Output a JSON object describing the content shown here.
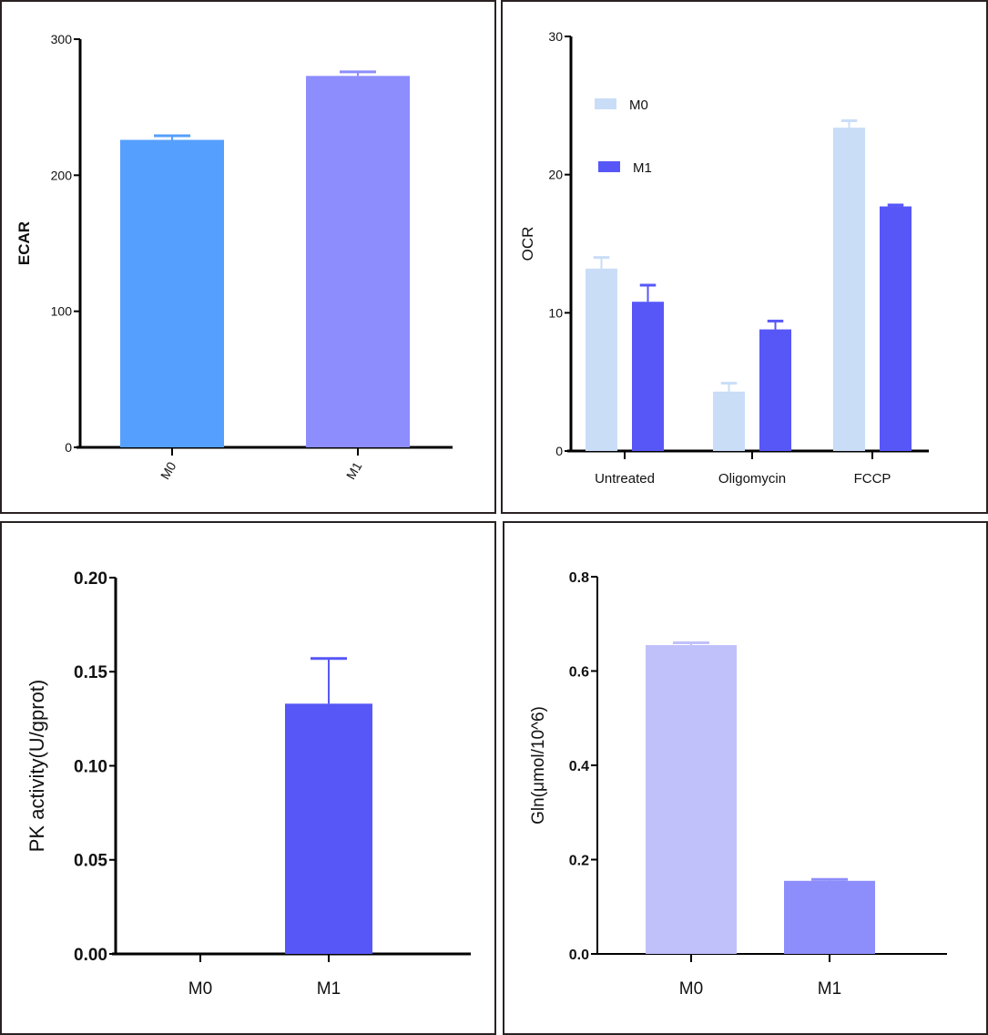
{
  "chart_data": [
    {
      "type": "bar",
      "ylabel": "ECAR",
      "ylim": [
        0,
        300
      ],
      "yticks": [
        "0",
        "100",
        "200",
        "300"
      ],
      "categories": [
        "M0",
        "M1"
      ],
      "values": [
        226,
        273
      ],
      "errors": [
        3,
        3
      ],
      "colors": [
        "#559ffe",
        "#8d8dfe"
      ],
      "xtick_rotation": "rotated",
      "grid": false
    },
    {
      "type": "bar",
      "ylabel": "OCR",
      "ylim": [
        0,
        30
      ],
      "yticks": [
        "0",
        "10",
        "20",
        "30"
      ],
      "categories": [
        "Untreated",
        "Oligomycin",
        "FCCP"
      ],
      "series": [
        {
          "name": "M0",
          "values": [
            13.2,
            4.3,
            23.4
          ],
          "errors": [
            0.8,
            0.6,
            0.5
          ],
          "color": "#c9ddf7"
        },
        {
          "name": "M1",
          "values": [
            10.8,
            8.8,
            17.7
          ],
          "errors": [
            1.2,
            0.6,
            0.1
          ],
          "color": "#5757f8"
        }
      ],
      "legend": "top-left",
      "grid": false
    },
    {
      "type": "bar",
      "ylabel": "PK activity(U/gprot)",
      "ylim": [
        0,
        0.2
      ],
      "yticks": [
        "0.00",
        "0.05",
        "0.10",
        "0.15",
        "0.20"
      ],
      "categories": [
        "M0",
        "M1"
      ],
      "values": [
        0,
        0.133
      ],
      "errors": [
        0,
        0.024
      ],
      "colors": [
        "#5757f8",
        "#5757f8"
      ],
      "grid": false
    },
    {
      "type": "bar",
      "ylabel": "Gln(μmol/10^6)",
      "ylim": [
        0,
        0.8
      ],
      "yticks": [
        "0.0",
        "0.2",
        "0.4",
        "0.6",
        "0.8"
      ],
      "categories": [
        "M0",
        "M1"
      ],
      "values": [
        0.655,
        0.155
      ],
      "errors": [
        0.005,
        0.003
      ],
      "colors": [
        "#c0c0fb",
        "#8d8dfb"
      ],
      "grid": false
    }
  ]
}
